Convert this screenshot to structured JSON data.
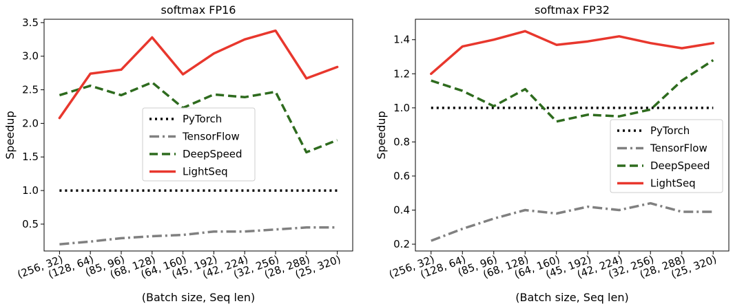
{
  "chart_data": [
    {
      "type": "line",
      "title": "softmax FP16",
      "xlabel": "(Batch size, Seq len)",
      "ylabel": "Speedup",
      "categories": [
        "(256, 32)",
        "(128, 64)",
        "(85, 96)",
        "(68, 128)",
        "(64, 160)",
        "(45, 192)",
        "(42, 224)",
        "(32, 256)",
        "(28, 288)",
        "(25, 320)"
      ],
      "ylim": [
        0.1,
        3.55
      ],
      "yticks": [
        "0.5",
        "1.0",
        "1.5",
        "2.0",
        "2.5",
        "3.0",
        "3.5"
      ],
      "legend_position": "center",
      "series": [
        {
          "name": "PyTorch",
          "color": "#000000",
          "style": "dotted",
          "values": [
            1.0,
            1.0,
            1.0,
            1.0,
            1.0,
            1.0,
            1.0,
            1.0,
            1.0,
            1.0
          ]
        },
        {
          "name": "TensorFlow",
          "color": "#808080",
          "style": "dashdot",
          "values": [
            0.2,
            0.24,
            0.29,
            0.32,
            0.34,
            0.39,
            0.39,
            0.42,
            0.45,
            0.45
          ]
        },
        {
          "name": "DeepSpeed",
          "color": "#2e6b1e",
          "style": "dashed",
          "values": [
            2.42,
            2.56,
            2.42,
            2.61,
            2.23,
            2.43,
            2.39,
            2.47,
            1.57,
            1.75
          ]
        },
        {
          "name": "LightSeq",
          "color": "#e8372d",
          "style": "solid",
          "values": [
            2.08,
            2.74,
            2.8,
            3.28,
            2.73,
            3.04,
            3.25,
            3.38,
            2.67,
            2.84
          ]
        }
      ]
    },
    {
      "type": "line",
      "title": "softmax FP32",
      "xlabel": "(Batch size, Seq len)",
      "ylabel": "Speedup",
      "categories": [
        "(256, 32)",
        "(128, 64)",
        "(85, 96)",
        "(68, 128)",
        "(64, 160)",
        "(45, 192)",
        "(42, 224)",
        "(32, 256)",
        "(28, 288)",
        "(25, 320)"
      ],
      "ylim": [
        0.16,
        1.52
      ],
      "yticks": [
        "0.2",
        "0.4",
        "0.6",
        "0.8",
        "1.0",
        "1.2",
        "1.4"
      ],
      "legend_position": "center-right",
      "series": [
        {
          "name": "PyTorch",
          "color": "#000000",
          "style": "dotted",
          "values": [
            1.0,
            1.0,
            1.0,
            1.0,
            1.0,
            1.0,
            1.0,
            1.0,
            1.0,
            1.0
          ]
        },
        {
          "name": "TensorFlow",
          "color": "#808080",
          "style": "dashdot",
          "values": [
            0.22,
            0.29,
            0.35,
            0.4,
            0.38,
            0.42,
            0.4,
            0.44,
            0.39,
            0.39
          ]
        },
        {
          "name": "DeepSpeed",
          "color": "#2e6b1e",
          "style": "dashed",
          "values": [
            1.16,
            1.1,
            1.01,
            1.11,
            0.92,
            0.96,
            0.95,
            0.99,
            1.16,
            1.28
          ]
        },
        {
          "name": "LightSeq",
          "color": "#e8372d",
          "style": "solid",
          "values": [
            1.2,
            1.36,
            1.4,
            1.45,
            1.37,
            1.39,
            1.42,
            1.38,
            1.35,
            1.38
          ]
        }
      ]
    }
  ]
}
